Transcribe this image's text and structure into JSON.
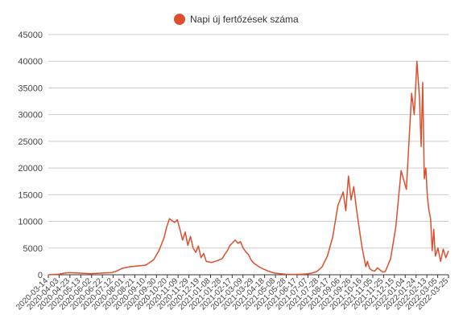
{
  "chart_data": {
    "type": "line",
    "title": "",
    "xlabel": "",
    "ylabel": "",
    "legend": {
      "placement": "top-center",
      "label": "Napi új fertőzések száma"
    },
    "color": "#dc4f2e",
    "ylim": [
      0,
      45000
    ],
    "y_ticks": [
      0,
      5000,
      10000,
      15000,
      20000,
      25000,
      30000,
      35000,
      40000,
      45000
    ],
    "x_tick_labels": [
      "2020-03-14",
      "2020-04-03",
      "2020-04-23",
      "2020-05-13",
      "2020-06-02",
      "2020-06-22",
      "2020-07-12",
      "2020-08-01",
      "2020-08-21",
      "2020-09-10",
      "2020-09-30",
      "2020-10-20",
      "2020-11-09",
      "2020-11-29",
      "2020-12-19",
      "2021-01-08",
      "2021-01-28",
      "2021-02-17",
      "2021-03-09",
      "2021-03-29",
      "2021-04-18",
      "2021-05-08",
      "2021-05-28",
      "2021-06-17",
      "2021-07-07",
      "2021-07-28",
      "2021-08-17",
      "2021-09-06",
      "2021-09-26",
      "2021-10-16",
      "2021-11-05",
      "2021-11-25",
      "2021-12-15",
      "2022-01-04",
      "2022-01-24",
      "2022-02-13",
      "2022-03-05",
      "2022-03-25"
    ],
    "x_index_range": [
      0,
      760
    ],
    "series": [
      {
        "name": "Napi új fertőzések száma",
        "x": [
          0,
          20,
          30,
          40,
          60,
          80,
          100,
          120,
          130,
          140,
          155,
          165,
          175,
          185,
          200,
          210,
          220,
          225,
          230,
          240,
          245,
          250,
          255,
          260,
          265,
          270,
          275,
          280,
          285,
          290,
          295,
          300,
          310,
          320,
          330,
          335,
          340,
          345,
          350,
          355,
          360,
          365,
          370,
          375,
          380,
          385,
          390,
          400,
          410,
          420,
          430,
          440,
          450,
          460,
          470,
          480,
          490,
          500,
          510,
          520,
          530,
          540,
          550,
          560,
          565,
          570,
          575,
          580,
          585,
          590,
          593,
          596,
          600,
          603,
          606,
          610,
          615,
          620,
          625,
          630,
          635,
          640,
          650,
          660,
          670,
          680,
          690,
          695,
          700,
          705,
          708,
          711,
          714,
          717,
          720,
          723,
          726,
          729,
          732,
          735,
          740,
          745,
          750,
          755,
          760
        ],
        "y": [
          0,
          100,
          300,
          400,
          300,
          200,
          300,
          400,
          700,
          1200,
          1500,
          1600,
          1700,
          1800,
          2800,
          4500,
          7000,
          9000,
          10500,
          9800,
          10300,
          8500,
          6500,
          8000,
          5500,
          7200,
          5000,
          4200,
          5400,
          3200,
          4000,
          2500,
          2300,
          2600,
          3000,
          3800,
          4500,
          5500,
          6000,
          6500,
          5900,
          6200,
          5000,
          4300,
          3800,
          2800,
          2200,
          1500,
          1000,
          600,
          300,
          200,
          100,
          50,
          50,
          100,
          150,
          300,
          600,
          1500,
          3500,
          7000,
          13000,
          15500,
          12000,
          18500,
          14000,
          16500,
          12500,
          9000,
          7000,
          5000,
          3000,
          1500,
          2500,
          1200,
          800,
          700,
          1300,
          900,
          500,
          600,
          3000,
          9000,
          19500,
          16000,
          34000,
          30000,
          40000,
          33000,
          24000,
          36000,
          18000,
          20000,
          14500,
          12000,
          10500,
          4500,
          8500,
          3500,
          5000,
          2500,
          4800,
          3200,
          4500
        ]
      }
    ]
  }
}
